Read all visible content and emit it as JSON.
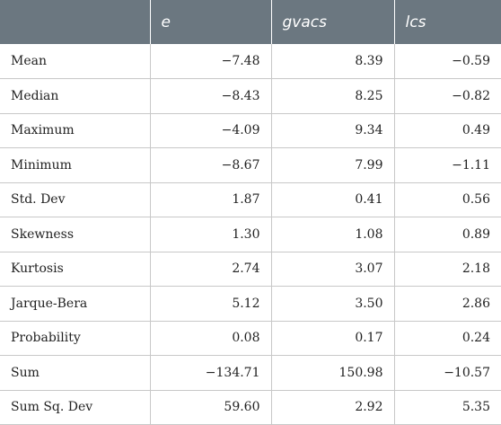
{
  "table": {
    "header": [
      "",
      "e",
      "gvacs",
      "lcs"
    ],
    "rows": [
      {
        "label": "Mean",
        "e": "−7.48",
        "gvacs": "8.39",
        "lcs": "−0.59"
      },
      {
        "label": "Median",
        "e": "−8.43",
        "gvacs": "8.25",
        "lcs": "−0.82"
      },
      {
        "label": "Maximum",
        "e": "−4.09",
        "gvacs": "9.34",
        "lcs": "0.49"
      },
      {
        "label": "Minimum",
        "e": "−8.67",
        "gvacs": "7.99",
        "lcs": "−1.11"
      },
      {
        "label": "Std. Dev",
        "e": "1.87",
        "gvacs": "0.41",
        "lcs": "0.56"
      },
      {
        "label": "Skewness",
        "e": "1.30",
        "gvacs": "1.08",
        "lcs": "0.89"
      },
      {
        "label": "Kurtosis",
        "e": "2.74",
        "gvacs": "3.07",
        "lcs": "2.18"
      },
      {
        "label": "Jarque-Bera",
        "e": "5.12",
        "gvacs": "3.50",
        "lcs": "2.86"
      },
      {
        "label": "Probability",
        "e": "0.08",
        "gvacs": "0.17",
        "lcs": "0.24"
      },
      {
        "label": "Sum",
        "e": "−134.71",
        "gvacs": "150.98",
        "lcs": "−10.57"
      },
      {
        "label": "Sum Sq. Dev",
        "e": "59.60",
        "gvacs": "2.92",
        "lcs": "5.35"
      }
    ]
  },
  "colors": {
    "header_background": "#6b7780",
    "header_text": "#ffffff",
    "grid_line": "#c8c8c8"
  }
}
